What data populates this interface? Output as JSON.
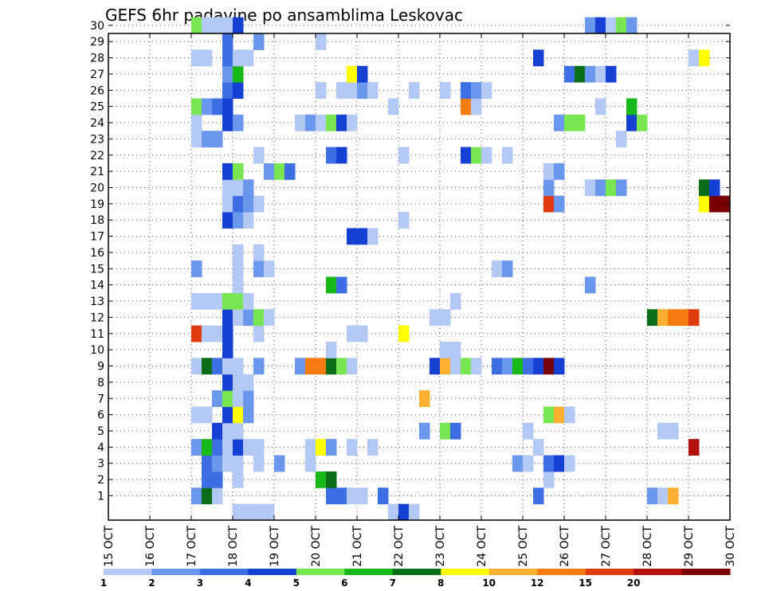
{
  "chart_data": {
    "type": "heatmap",
    "title": "GEFS 6hr padavine po ansamblima Leskovac",
    "x_ticks": [
      "15 OCT",
      "16 OCT",
      "17 OCT",
      "18 OCT",
      "19 OCT",
      "20 OCT",
      "21 OCT",
      "22 OCT",
      "23 OCT",
      "24 OCT",
      "25 OCT",
      "26 OCT",
      "27 OCT",
      "28 OCT",
      "29 OCT",
      "30 OCT"
    ],
    "x_range": [
      0,
      15
    ],
    "y_ticks": [
      "1",
      "2",
      "3",
      "4",
      "5",
      "6",
      "7",
      "8",
      "9",
      "10",
      "11",
      "12",
      "13",
      "14",
      "15",
      "16",
      "17",
      "18",
      "19",
      "20",
      "21",
      "22",
      "23",
      "24",
      "25",
      "26",
      "27",
      "28",
      "29",
      "30"
    ],
    "y_range": [
      0,
      30
    ],
    "grid": "dotted",
    "color_scale": {
      "colors": [
        "#b3c8f5",
        "#6a96eb",
        "#3d6ee3",
        "#1640d4",
        "#78e650",
        "#18b818",
        "#0a6e18",
        "#ffff00",
        "#ffb030",
        "#f57a10",
        "#e03a10",
        "#b41010",
        "#780000"
      ],
      "labels": [
        "1",
        "2",
        "3",
        "4",
        "5",
        "6",
        "7",
        "8",
        "10",
        "12",
        "15",
        "20"
      ]
    },
    "cells": [
      [
        2.0,
        1,
        1
      ],
      [
        2.25,
        1,
        6
      ],
      [
        2.5,
        1,
        0
      ],
      [
        5.25,
        1,
        2
      ],
      [
        5.5,
        1,
        2
      ],
      [
        5.75,
        1,
        0
      ],
      [
        6.0,
        1,
        0
      ],
      [
        6.5,
        1,
        2
      ],
      [
        10.25,
        1,
        2
      ],
      [
        13.0,
        1,
        1
      ],
      [
        13.25,
        1,
        0
      ],
      [
        13.5,
        1,
        8
      ],
      [
        2.25,
        2,
        2
      ],
      [
        2.5,
        2,
        2
      ],
      [
        3.0,
        2,
        0
      ],
      [
        5.0,
        2,
        5
      ],
      [
        5.25,
        2,
        6
      ],
      [
        10.5,
        2,
        0
      ],
      [
        2.25,
        3,
        2
      ],
      [
        2.5,
        3,
        1
      ],
      [
        2.75,
        3,
        0
      ],
      [
        3.0,
        3,
        0
      ],
      [
        3.5,
        3,
        0
      ],
      [
        4.0,
        3,
        1
      ],
      [
        4.75,
        3,
        0
      ],
      [
        9.75,
        3,
        1
      ],
      [
        10.0,
        3,
        0
      ],
      [
        10.5,
        3,
        2
      ],
      [
        10.75,
        3,
        3
      ],
      [
        11.0,
        3,
        0
      ],
      [
        2.0,
        4,
        1
      ],
      [
        2.25,
        4,
        5
      ],
      [
        2.5,
        4,
        2
      ],
      [
        2.75,
        4,
        0
      ],
      [
        3.0,
        4,
        3
      ],
      [
        3.25,
        4,
        0
      ],
      [
        3.5,
        4,
        0
      ],
      [
        4.75,
        4,
        0
      ],
      [
        5.0,
        4,
        7
      ],
      [
        5.25,
        4,
        1
      ],
      [
        5.75,
        4,
        0
      ],
      [
        6.25,
        4,
        0
      ],
      [
        10.25,
        4,
        0
      ],
      [
        14.0,
        4,
        11
      ],
      [
        2.5,
        5,
        3
      ],
      [
        2.75,
        5,
        0
      ],
      [
        3.0,
        5,
        0
      ],
      [
        7.5,
        5,
        1
      ],
      [
        8.0,
        5,
        4
      ],
      [
        8.25,
        5,
        2
      ],
      [
        10.0,
        5,
        0
      ],
      [
        13.25,
        5,
        0
      ],
      [
        13.5,
        5,
        0
      ],
      [
        2.0,
        6,
        0
      ],
      [
        2.25,
        6,
        0
      ],
      [
        2.75,
        6,
        3
      ],
      [
        3.0,
        6,
        7
      ],
      [
        3.25,
        6,
        1
      ],
      [
        10.5,
        6,
        4
      ],
      [
        10.75,
        6,
        8
      ],
      [
        11.0,
        6,
        0
      ],
      [
        2.5,
        7,
        1
      ],
      [
        2.75,
        7,
        4
      ],
      [
        3.0,
        7,
        0
      ],
      [
        3.25,
        7,
        1
      ],
      [
        7.5,
        7,
        8
      ],
      [
        2.75,
        8,
        3
      ],
      [
        3.0,
        8,
        0
      ],
      [
        3.25,
        8,
        0
      ],
      [
        2.0,
        9,
        0
      ],
      [
        2.25,
        9,
        6
      ],
      [
        2.5,
        9,
        2
      ],
      [
        2.75,
        9,
        0
      ],
      [
        3.0,
        9,
        0
      ],
      [
        3.5,
        9,
        1
      ],
      [
        4.5,
        9,
        1
      ],
      [
        4.75,
        9,
        9
      ],
      [
        5.0,
        9,
        9
      ],
      [
        5.25,
        9,
        6
      ],
      [
        5.5,
        9,
        4
      ],
      [
        5.75,
        9,
        0
      ],
      [
        7.75,
        9,
        3
      ],
      [
        8.0,
        9,
        8
      ],
      [
        8.25,
        9,
        0
      ],
      [
        8.5,
        9,
        4
      ],
      [
        8.75,
        9,
        0
      ],
      [
        9.25,
        9,
        2
      ],
      [
        9.5,
        9,
        1
      ],
      [
        9.75,
        9,
        5
      ],
      [
        10.0,
        9,
        2
      ],
      [
        10.25,
        9,
        3
      ],
      [
        10.5,
        9,
        12
      ],
      [
        10.75,
        9,
        3
      ],
      [
        2.75,
        10,
        3
      ],
      [
        5.25,
        10,
        0
      ],
      [
        8.0,
        10,
        0
      ],
      [
        8.25,
        10,
        0
      ],
      [
        2.0,
        11,
        10
      ],
      [
        2.25,
        11,
        0
      ],
      [
        2.5,
        11,
        0
      ],
      [
        2.75,
        11,
        3
      ],
      [
        3.5,
        11,
        0
      ],
      [
        5.75,
        11,
        0
      ],
      [
        6.0,
        11,
        0
      ],
      [
        7.0,
        11,
        7
      ],
      [
        2.75,
        12,
        3
      ],
      [
        3.0,
        12,
        0
      ],
      [
        3.25,
        12,
        1
      ],
      [
        3.5,
        12,
        4
      ],
      [
        3.75,
        12,
        0
      ],
      [
        7.75,
        12,
        0
      ],
      [
        8.0,
        12,
        0
      ],
      [
        13.0,
        12,
        6
      ],
      [
        13.25,
        12,
        8
      ],
      [
        13.5,
        12,
        9
      ],
      [
        13.75,
        12,
        9
      ],
      [
        14.0,
        12,
        10
      ],
      [
        2.0,
        13,
        0
      ],
      [
        2.25,
        13,
        0
      ],
      [
        2.5,
        13,
        0
      ],
      [
        2.75,
        13,
        4
      ],
      [
        3.0,
        13,
        4
      ],
      [
        3.25,
        13,
        0
      ],
      [
        8.25,
        13,
        0
      ],
      [
        3.0,
        14,
        0
      ],
      [
        5.25,
        14,
        5
      ],
      [
        5.5,
        14,
        2
      ],
      [
        11.5,
        14,
        1
      ],
      [
        2.0,
        15,
        1
      ],
      [
        3.0,
        15,
        0
      ],
      [
        3.5,
        15,
        1
      ],
      [
        3.75,
        15,
        0
      ],
      [
        9.25,
        15,
        0
      ],
      [
        9.5,
        15,
        1
      ],
      [
        3.0,
        16,
        0
      ],
      [
        3.5,
        16,
        0
      ],
      [
        5.75,
        17,
        3
      ],
      [
        6.0,
        17,
        3
      ],
      [
        6.25,
        17,
        0
      ],
      [
        2.75,
        18,
        3
      ],
      [
        3.0,
        18,
        1
      ],
      [
        3.25,
        18,
        0
      ],
      [
        7.0,
        18,
        0
      ],
      [
        2.75,
        19,
        0
      ],
      [
        3.0,
        19,
        2
      ],
      [
        3.25,
        19,
        1
      ],
      [
        3.5,
        19,
        0
      ],
      [
        10.5,
        19,
        10
      ],
      [
        10.75,
        19,
        1
      ],
      [
        14.25,
        19,
        7
      ],
      [
        14.5,
        19,
        12
      ],
      [
        14.75,
        19,
        12
      ],
      [
        2.75,
        20,
        0
      ],
      [
        3.0,
        20,
        0
      ],
      [
        3.25,
        20,
        1
      ],
      [
        10.5,
        20,
        1
      ],
      [
        11.5,
        20,
        0
      ],
      [
        11.75,
        20,
        1
      ],
      [
        12.0,
        20,
        4
      ],
      [
        12.25,
        20,
        1
      ],
      [
        14.25,
        20,
        6
      ],
      [
        14.5,
        20,
        3
      ],
      [
        2.75,
        21,
        3
      ],
      [
        3.0,
        21,
        4
      ],
      [
        3.75,
        21,
        1
      ],
      [
        4.0,
        21,
        4
      ],
      [
        4.25,
        21,
        2
      ],
      [
        10.5,
        21,
        0
      ],
      [
        10.75,
        21,
        1
      ],
      [
        3.5,
        22,
        0
      ],
      [
        5.25,
        22,
        2
      ],
      [
        5.5,
        22,
        3
      ],
      [
        7.0,
        22,
        0
      ],
      [
        8.5,
        22,
        3
      ],
      [
        8.75,
        22,
        4
      ],
      [
        9.0,
        22,
        0
      ],
      [
        9.5,
        22,
        0
      ],
      [
        2.0,
        23,
        0
      ],
      [
        2.25,
        23,
        1
      ],
      [
        2.5,
        23,
        1
      ],
      [
        12.25,
        23,
        0
      ],
      [
        2.0,
        24,
        0
      ],
      [
        2.75,
        24,
        3
      ],
      [
        3.0,
        24,
        1
      ],
      [
        4.5,
        24,
        0
      ],
      [
        4.75,
        24,
        1
      ],
      [
        5.0,
        24,
        0
      ],
      [
        5.25,
        24,
        4
      ],
      [
        5.5,
        24,
        3
      ],
      [
        5.75,
        24,
        0
      ],
      [
        10.75,
        24,
        1
      ],
      [
        11.0,
        24,
        4
      ],
      [
        11.25,
        24,
        4
      ],
      [
        12.5,
        24,
        3
      ],
      [
        12.75,
        24,
        4
      ],
      [
        2.0,
        25,
        4
      ],
      [
        2.25,
        25,
        1
      ],
      [
        2.5,
        25,
        2
      ],
      [
        2.75,
        25,
        3
      ],
      [
        6.75,
        25,
        0
      ],
      [
        8.5,
        25,
        9
      ],
      [
        8.75,
        25,
        0
      ],
      [
        11.75,
        25,
        0
      ],
      [
        12.5,
        25,
        5
      ],
      [
        2.75,
        26,
        2
      ],
      [
        3.0,
        26,
        3
      ],
      [
        5.0,
        26,
        0
      ],
      [
        5.5,
        26,
        0
      ],
      [
        5.75,
        26,
        0
      ],
      [
        6.0,
        26,
        1
      ],
      [
        6.25,
        26,
        0
      ],
      [
        7.25,
        26,
        0
      ],
      [
        8.0,
        26,
        0
      ],
      [
        8.5,
        26,
        2
      ],
      [
        8.75,
        26,
        1
      ],
      [
        9.0,
        26,
        0
      ],
      [
        2.75,
        27,
        1
      ],
      [
        3.0,
        27,
        5
      ],
      [
        5.75,
        27,
        7
      ],
      [
        6.0,
        27,
        3
      ],
      [
        11.0,
        27,
        2
      ],
      [
        11.25,
        27,
        6
      ],
      [
        11.5,
        27,
        1
      ],
      [
        11.75,
        27,
        0
      ],
      [
        12.0,
        27,
        3
      ],
      [
        2.0,
        28,
        0
      ],
      [
        2.25,
        28,
        0
      ],
      [
        2.75,
        28,
        2
      ],
      [
        3.0,
        28,
        0
      ],
      [
        3.25,
        28,
        0
      ],
      [
        10.25,
        28,
        3
      ],
      [
        14.0,
        28,
        0
      ],
      [
        14.25,
        28,
        7
      ],
      [
        2.75,
        29,
        2
      ],
      [
        3.5,
        29,
        1
      ],
      [
        5.0,
        29,
        0
      ],
      [
        2.0,
        30,
        4
      ],
      [
        2.25,
        30,
        0
      ],
      [
        2.5,
        30,
        0
      ],
      [
        2.75,
        30,
        0
      ],
      [
        3.0,
        30,
        3
      ],
      [
        11.5,
        30,
        1
      ],
      [
        11.75,
        30,
        3
      ],
      [
        12.0,
        30,
        0
      ],
      [
        12.25,
        30,
        4
      ],
      [
        12.5,
        30,
        1
      ],
      [
        3.0,
        0,
        0
      ],
      [
        3.25,
        0,
        0
      ],
      [
        3.5,
        0,
        0
      ],
      [
        3.75,
        0,
        0
      ],
      [
        6.75,
        0,
        0
      ],
      [
        7.0,
        0,
        3
      ],
      [
        7.25,
        0,
        0
      ]
    ]
  }
}
